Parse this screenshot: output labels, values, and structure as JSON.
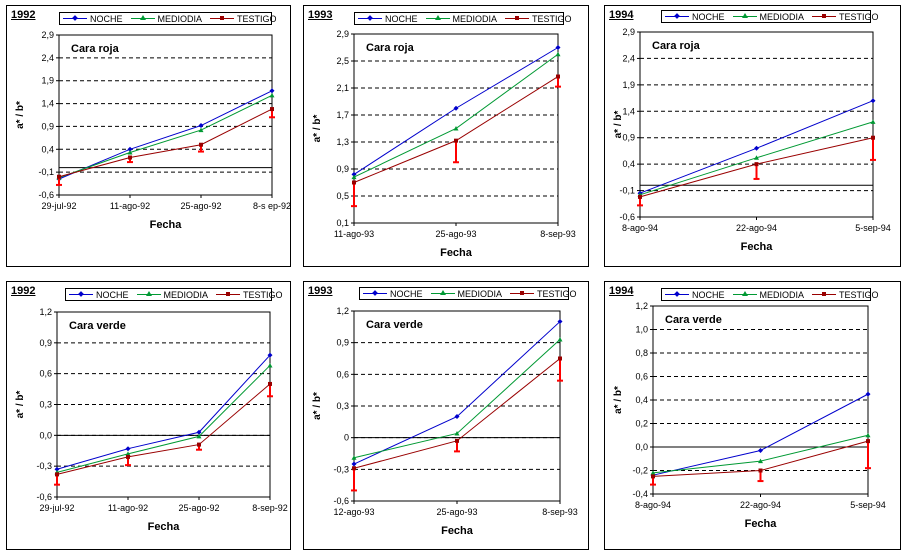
{
  "legend_labels": [
    "NOCHE",
    "MEDIODIA",
    "TESTIGO"
  ],
  "colors": {
    "noche": "#0000cc",
    "mediodia": "#009933",
    "testigo": "#990000",
    "error": "#ff0000"
  },
  "chart_data": [
    {
      "type": "line",
      "year": "1992",
      "title": "Cara roja",
      "xlabel": "Fecha",
      "ylabel": "a* / b*",
      "x": [
        "29-jul-92",
        "11-ago-92",
        "25-ago-92",
        "8-sep-92"
      ],
      "xtick_labels": [
        "29-jul-92",
        "11-ago-92",
        "25-ago-92",
        "8-s ep-92"
      ],
      "ylim": [
        -0.6,
        2.9
      ],
      "yticks": [
        -0.6,
        -0.1,
        0.4,
        0.9,
        1.4,
        1.9,
        2.4,
        2.9
      ],
      "ytick_labels": [
        "-0,6",
        "-0,1",
        "0,4",
        "0,9",
        "1,4",
        "1,9",
        "2,4",
        "2,9"
      ],
      "zero_line": 0,
      "series": [
        {
          "name": "NOCHE",
          "values": [
            -0.25,
            0.4,
            0.92,
            1.68
          ]
        },
        {
          "name": "MEDIODIA",
          "values": [
            -0.22,
            0.33,
            0.82,
            1.58
          ]
        },
        {
          "name": "TESTIGO",
          "values": [
            -0.2,
            0.22,
            0.5,
            1.28
          ],
          "error_low": [
            -0.38,
            0.12,
            0.35,
            1.1
          ]
        }
      ]
    },
    {
      "type": "line",
      "year": "1993",
      "title": "Cara roja",
      "xlabel": "Fecha",
      "ylabel": "a* / b*",
      "x": [
        "11-ago-93",
        "25-ago-93",
        "8-sep-93"
      ],
      "xtick_labels": [
        "11-ago-93",
        "25-ago-93",
        "8-sep-93"
      ],
      "ylim": [
        0.1,
        2.9
      ],
      "yticks": [
        0.1,
        0.5,
        0.9,
        1.3,
        1.7,
        2.1,
        2.5,
        2.9
      ],
      "ytick_labels": [
        "0,1",
        "0,5",
        "0,9",
        "1,3",
        "1,7",
        "2,1",
        "2,5",
        "2,9"
      ],
      "series": [
        {
          "name": "NOCHE",
          "values": [
            0.82,
            1.8,
            2.7
          ]
        },
        {
          "name": "MEDIODIA",
          "values": [
            0.78,
            1.5,
            2.6
          ]
        },
        {
          "name": "TESTIGO",
          "values": [
            0.7,
            1.32,
            2.27
          ],
          "error_low": [
            0.35,
            1.0,
            2.12
          ]
        }
      ]
    },
    {
      "type": "line",
      "year": "1994",
      "title": "Cara roja",
      "xlabel": "Fecha",
      "ylabel": "a* / b*",
      "x": [
        "8-ago-94",
        "22-ago-94",
        "5-sep-94"
      ],
      "xtick_labels": [
        "8-ago-94",
        "22-ago-94",
        "5-sep-94"
      ],
      "ylim": [
        -0.6,
        2.9
      ],
      "yticks": [
        -0.6,
        -0.1,
        0.4,
        0.9,
        1.4,
        1.9,
        2.4,
        2.9
      ],
      "ytick_labels": [
        "-0,6",
        "-0,1",
        "0,4",
        "0,9",
        "1,4",
        "1,9",
        "2,4",
        "2,9"
      ],
      "zero_line": 0,
      "series": [
        {
          "name": "NOCHE",
          "values": [
            -0.15,
            0.7,
            1.6
          ]
        },
        {
          "name": "MEDIODIA",
          "values": [
            -0.18,
            0.52,
            1.2
          ]
        },
        {
          "name": "TESTIGO",
          "values": [
            -0.22,
            0.4,
            0.9
          ],
          "error_low": [
            -0.38,
            0.12,
            0.48
          ]
        }
      ]
    },
    {
      "type": "line",
      "year": "1992",
      "title": "Cara verde",
      "xlabel": "Fecha",
      "ylabel": "a* / b*",
      "x": [
        "29-jul-92",
        "11-ago-92",
        "25-ago-92",
        "8-sep-92"
      ],
      "xtick_labels": [
        "29-jul-92",
        "11-ago-92",
        "25-ago-92",
        "8-sep-92"
      ],
      "ylim": [
        -0.6,
        1.2
      ],
      "yticks": [
        -0.6,
        -0.3,
        0.0,
        0.3,
        0.6,
        0.9,
        1.2
      ],
      "ytick_labels": [
        "-0,6",
        "-0,3",
        "0,0",
        "0,3",
        "0,6",
        "0,9",
        "1,2"
      ],
      "zero_line": 0,
      "series": [
        {
          "name": "NOCHE",
          "values": [
            -0.33,
            -0.13,
            0.03,
            0.78
          ]
        },
        {
          "name": "MEDIODIA",
          "values": [
            -0.36,
            -0.18,
            -0.01,
            0.68
          ]
        },
        {
          "name": "TESTIGO",
          "values": [
            -0.38,
            -0.21,
            -0.09,
            0.5
          ],
          "error_low": [
            -0.48,
            -0.29,
            -0.14,
            0.38
          ]
        }
      ]
    },
    {
      "type": "line",
      "year": "1993",
      "title": "Cara verde",
      "xlabel": "Fecha",
      "ylabel": "a* / b*",
      "x": [
        "12-ago-93",
        "25-ago-93",
        "8-sep-93"
      ],
      "xtick_labels": [
        "12-ago-93",
        "25-ago-93",
        "8-sep-93"
      ],
      "ylim": [
        -0.6,
        1.2
      ],
      "yticks": [
        -0.6,
        -0.3,
        0.0,
        0.3,
        0.6,
        0.9,
        1.2
      ],
      "ytick_labels": [
        "-0,6",
        "-0,3",
        "0",
        "0,3",
        "0,6",
        "0,9",
        "1,2"
      ],
      "zero_line": 0,
      "series": [
        {
          "name": "NOCHE",
          "values": [
            -0.25,
            0.2,
            1.1
          ]
        },
        {
          "name": "MEDIODIA",
          "values": [
            -0.19,
            0.04,
            0.93
          ]
        },
        {
          "name": "TESTIGO",
          "values": [
            -0.29,
            -0.03,
            0.75
          ],
          "error_low": [
            -0.5,
            -0.13,
            0.54
          ]
        }
      ]
    },
    {
      "type": "line",
      "year": "1994",
      "title": "Cara verde",
      "xlabel": "Fecha",
      "ylabel": "a* / b*",
      "x": [
        "8-ago-94",
        "22-ago-94",
        "5-sep-94"
      ],
      "xtick_labels": [
        "8-ago-94",
        "22-ago-94",
        "5-sep-94"
      ],
      "ylim": [
        -0.4,
        1.2
      ],
      "yticks": [
        -0.4,
        -0.2,
        0.0,
        0.2,
        0.4,
        0.6,
        0.8,
        1.0,
        1.2
      ],
      "ytick_labels": [
        "-0,4",
        "-0,2",
        "0,0",
        "0,2",
        "0,4",
        "0,6",
        "0,8",
        "1,0",
        "1,2"
      ],
      "zero_line": 0,
      "series": [
        {
          "name": "NOCHE",
          "values": [
            -0.24,
            -0.03,
            0.45
          ]
        },
        {
          "name": "MEDIODIA",
          "values": [
            -0.22,
            -0.12,
            0.1
          ]
        },
        {
          "name": "TESTIGO",
          "values": [
            -0.25,
            -0.2,
            0.05
          ],
          "error_low": [
            -0.32,
            -0.29,
            -0.18
          ]
        }
      ]
    }
  ]
}
